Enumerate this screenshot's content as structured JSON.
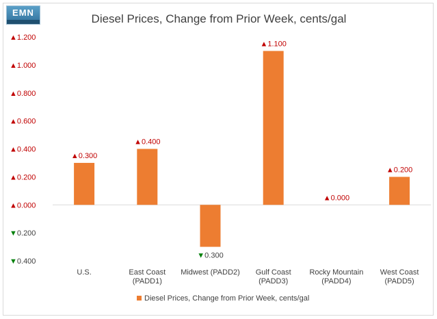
{
  "logo_text": "EMN",
  "chart_data": {
    "type": "bar",
    "title": "Diesel Prices, Change from Prior Week, cents/gal",
    "categories": [
      [
        "U.S."
      ],
      [
        "East Coast",
        "(PADD1)"
      ],
      [
        "Midwest (PADD2)"
      ],
      [
        "Gulf Coast",
        "(PADD3)"
      ],
      [
        "Rocky Mountain",
        "(PADD4)"
      ],
      [
        "West Coast",
        "(PADD5)"
      ]
    ],
    "series": [
      {
        "name": "Diesel Prices, Change from Prior Week, cents/gal",
        "values": [
          0.3,
          0.4,
          -0.3,
          1.1,
          0.0,
          0.2
        ]
      }
    ],
    "data_labels": [
      "0.300",
      "0.400",
      "0.300",
      "1.100",
      "0.000",
      "0.200"
    ],
    "y_ticks": [
      1.2,
      1.0,
      0.8,
      0.6,
      0.4,
      0.2,
      0.0,
      -0.2,
      -0.4
    ],
    "y_tick_labels": [
      "1.200",
      "1.000",
      "0.800",
      "0.600",
      "0.400",
      "0.200",
      "0.000",
      "0.200",
      "0.400"
    ],
    "ylim": [
      -0.4,
      1.2
    ],
    "grid": false,
    "legend_position": "bottom",
    "colors": {
      "bar": "#ed7d31",
      "up_arrow": "#c00000",
      "down_arrow": "#00800a",
      "label_text": "#404040",
      "title_text": "#404040",
      "zero_line": "#d9d9d9"
    },
    "up_symbol": "▲",
    "down_symbol": "▼"
  }
}
